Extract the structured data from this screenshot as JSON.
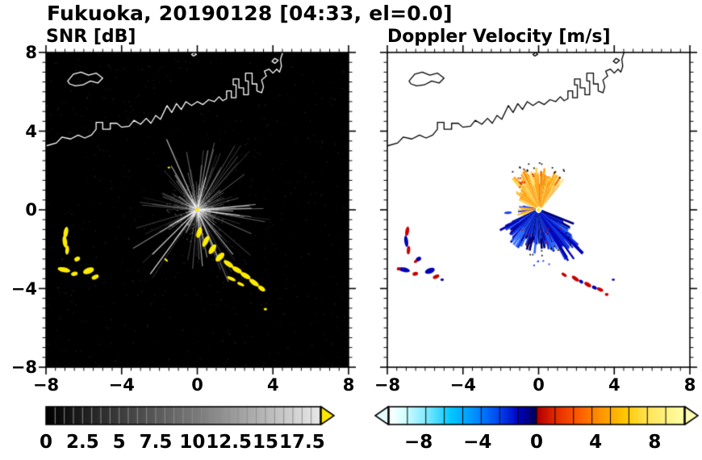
{
  "title": "Fukuoka, 20190128 [04:33, el=0.0]",
  "chart_data": [
    {
      "type": "heatmap",
      "panel": "snr",
      "title": "SNR [dB]",
      "xlabel": "",
      "ylabel": "",
      "xlim": [
        -8,
        8
      ],
      "ylim": [
        -8,
        8
      ],
      "xticks": [
        -8,
        -4,
        0,
        4,
        8
      ],
      "yticks": [
        8,
        4,
        0,
        -4,
        -8
      ],
      "xtick_labels": [
        "−8",
        "−4",
        "0",
        "4",
        "8"
      ],
      "ytick_labels": [
        "8",
        "4",
        "0",
        "−4",
        "−8"
      ],
      "minor_tick_step": 0.5,
      "background": "#000000",
      "coast_color": "#ffffff",
      "target_color": "#ffec00",
      "rays": {
        "seed": 7,
        "count": 175,
        "bright": 22,
        "noise": 650
      },
      "colorbar": {
        "range": [
          0,
          18.75
        ],
        "tick_values": [
          0,
          2.5,
          5,
          7.5,
          10,
          12.5,
          15,
          17.5
        ],
        "tick_labels": [
          "0",
          "2.5",
          "5",
          "7.5",
          "10",
          "12.5",
          "15",
          "17.5"
        ],
        "colormap": "grayscale",
        "stops": [
          [
            0,
            "#000000"
          ],
          [
            0.55,
            "#7a7a7a"
          ],
          [
            0.93,
            "#d8d8d8"
          ],
          [
            1,
            "#e8e8e8"
          ]
        ],
        "segments": 30,
        "separator_color": "#8c8c8c",
        "over_arrow_color": "#ffe800"
      },
      "blobs": [
        {
          "x": -6.95,
          "y": -1.15,
          "rx": 0.12,
          "ry": 0.3,
          "rot": -10
        },
        {
          "x": -7.0,
          "y": -1.62,
          "rx": 0.12,
          "ry": 0.32,
          "rot": 8
        },
        {
          "x": -6.88,
          "y": -2.05,
          "rx": 0.1,
          "ry": 0.24,
          "rot": -5
        },
        {
          "x": -6.35,
          "y": -2.5,
          "rx": 0.16,
          "ry": 0.12,
          "rot": 30
        },
        {
          "x": -7.05,
          "y": -3.05,
          "rx": 0.34,
          "ry": 0.13,
          "rot": -12
        },
        {
          "x": -6.5,
          "y": -3.25,
          "rx": 0.18,
          "ry": 0.11,
          "rot": 15
        },
        {
          "x": -5.75,
          "y": -3.1,
          "rx": 0.3,
          "ry": 0.16,
          "rot": 20
        },
        {
          "x": -5.4,
          "y": -3.42,
          "rx": 0.2,
          "ry": 0.11,
          "rot": 25
        },
        {
          "x": 0.1,
          "y": -1.15,
          "rx": 0.13,
          "ry": 0.3,
          "rot": -18
        },
        {
          "x": 0.45,
          "y": -1.6,
          "rx": 0.13,
          "ry": 0.32,
          "rot": -28
        },
        {
          "x": 0.8,
          "y": -2.0,
          "rx": 0.14,
          "ry": 0.3,
          "rot": -35
        },
        {
          "x": 1.2,
          "y": -2.4,
          "rx": 0.15,
          "ry": 0.3,
          "rot": -45
        },
        {
          "x": 1.65,
          "y": -2.75,
          "rx": 0.3,
          "ry": 0.13,
          "rot": -35
        },
        {
          "x": 2.1,
          "y": -3.05,
          "rx": 0.3,
          "ry": 0.13,
          "rot": -30
        },
        {
          "x": 2.55,
          "y": -3.35,
          "rx": 0.3,
          "ry": 0.13,
          "rot": -30
        },
        {
          "x": 3.0,
          "y": -3.7,
          "rx": 0.3,
          "ry": 0.13,
          "rot": -35
        },
        {
          "x": 3.4,
          "y": -4.0,
          "rx": 0.22,
          "ry": 0.12,
          "rot": -35
        },
        {
          "x": 1.8,
          "y": -3.5,
          "rx": 0.25,
          "ry": 0.09,
          "rot": -25
        },
        {
          "x": 2.3,
          "y": -3.78,
          "rx": 0.2,
          "ry": 0.08,
          "rot": -25
        },
        {
          "x": -1.65,
          "y": -2.55,
          "rx": 0.12,
          "ry": 0.05,
          "rot": -40
        },
        {
          "x": 3.6,
          "y": -5.05,
          "rx": 0.09,
          "ry": 0.07,
          "rot": 0
        },
        {
          "x": -1.5,
          "y": 2.15,
          "rx": 0.07,
          "ry": 0.05,
          "rot": 0
        }
      ]
    },
    {
      "type": "heatmap",
      "panel": "doppler_velocity",
      "title": "Doppler Velocity [m/s]",
      "xlabel": "",
      "ylabel": "",
      "xlim": [
        -8,
        8
      ],
      "ylim": [
        -8,
        8
      ],
      "xticks": [
        -8,
        -4,
        0,
        4,
        8
      ],
      "yticks": [
        8,
        4,
        0,
        -4,
        -8
      ],
      "xtick_labels": [
        "−8",
        "−4",
        "0",
        "4",
        "8"
      ],
      "ytick_labels": [
        "8",
        "4",
        "0",
        "−4",
        "−8"
      ],
      "minor_tick_step": 0.5,
      "background": "#ffffff",
      "coast_color": "#000000",
      "colorbar": {
        "range": [
          -10,
          10
        ],
        "tick_values": [
          -8,
          -4,
          0,
          4,
          8
        ],
        "tick_labels": [
          "−8",
          "−4",
          "0",
          "4",
          "8"
        ],
        "colormap": "velocity",
        "stops": [
          [
            0,
            "#ffffff"
          ],
          [
            0.05,
            "#d6ffff"
          ],
          [
            0.13,
            "#7ce8ff"
          ],
          [
            0.21,
            "#00c8ff"
          ],
          [
            0.29,
            "#0090ff"
          ],
          [
            0.37,
            "#0048f0"
          ],
          [
            0.44,
            "#0000c0"
          ],
          [
            0.495,
            "#000058"
          ],
          [
            0.505,
            "#b40000"
          ],
          [
            0.56,
            "#e02800"
          ],
          [
            0.64,
            "#ff5a00"
          ],
          [
            0.72,
            "#ff9600"
          ],
          [
            0.8,
            "#ffc800"
          ],
          [
            0.88,
            "#ffe55a"
          ],
          [
            1,
            "#ffffaa"
          ]
        ],
        "segments": 16,
        "separator_color": "#000000",
        "under_arrow_color": "#e6ffff",
        "over_arrow_color": "#ffffb4"
      },
      "fans": [
        {
          "a0": 50,
          "a1": 130,
          "n": 95,
          "rmin": 0.5,
          "rmax": 2.25,
          "w": 2.7,
          "colors": [
            "#ffd24d",
            "#ffa81e",
            "#ffe896",
            "#f07800"
          ]
        },
        {
          "a0": 130,
          "a1": 152,
          "n": 20,
          "rmin": 0.4,
          "rmax": 1.55,
          "w": 2.3,
          "colors": [
            "#ffb830",
            "#ffd96a",
            "#ff9100"
          ]
        },
        {
          "a0": 168,
          "a1": 200,
          "n": 14,
          "rmin": 0.3,
          "rmax": 1.2,
          "w": 2.0,
          "colors": [
            "#ffa81e",
            "#2244ee",
            "#ffd96a"
          ]
        },
        {
          "a0": 205,
          "a1": 338,
          "n": 140,
          "rmin": 0.4,
          "rmax": 2.35,
          "w": 2.7,
          "colors": [
            "#1133dd",
            "#0000b4",
            "#3366ff",
            "#000070",
            "#2b6cff"
          ]
        },
        {
          "a0": 298,
          "a1": 318,
          "n": 18,
          "rmin": 1.2,
          "rmax": 3.3,
          "w": 2.4,
          "colors": [
            "#0000b4",
            "#1133dd"
          ]
        }
      ],
      "specks": [
        {
          "count": 16,
          "a0": 55,
          "a1": 125,
          "r0": 2.0,
          "r1": 2.5,
          "color": "#151515",
          "s": 1.8
        },
        {
          "count": 10,
          "a0": 95,
          "a1": 130,
          "r0": 1.5,
          "r1": 2.1,
          "color": "#cc2200",
          "s": 1.8
        },
        {
          "count": 14,
          "a0": 235,
          "a1": 325,
          "r0": 1.8,
          "r1": 2.55,
          "color": "#101010",
          "s": 1.8
        },
        {
          "count": 8,
          "a0": 210,
          "a1": 335,
          "r0": 0.9,
          "r1": 1.9,
          "color": "#cc0000",
          "s": 1.7
        },
        {
          "count": 5,
          "a0": 255,
          "a1": 285,
          "r0": 2.6,
          "r1": 3.0,
          "color": "#2244ee",
          "s": 2.0
        }
      ],
      "blobs": [
        {
          "x": -6.95,
          "y": -1.1,
          "rx": 0.1,
          "ry": 0.26,
          "rot": -10,
          "c": "#c80000"
        },
        {
          "x": -7.0,
          "y": -1.6,
          "rx": 0.1,
          "ry": 0.3,
          "rot": 8,
          "c": "#0000b4"
        },
        {
          "x": -6.88,
          "y": -2.05,
          "rx": 0.09,
          "ry": 0.22,
          "rot": -5,
          "c": "#c80000"
        },
        {
          "x": -6.35,
          "y": -2.5,
          "rx": 0.15,
          "ry": 0.11,
          "rot": 30,
          "c": "#0000b4"
        },
        {
          "x": -6.5,
          "y": -2.62,
          "rx": 0.1,
          "ry": 0.08,
          "rot": 30,
          "c": "#c80000"
        },
        {
          "x": -7.1,
          "y": -3.05,
          "rx": 0.3,
          "ry": 0.12,
          "rot": -12,
          "c": "#0000b4"
        },
        {
          "x": -7.4,
          "y": -3.0,
          "rx": 0.1,
          "ry": 0.09,
          "rot": 0,
          "c": "#c80000"
        },
        {
          "x": -6.52,
          "y": -3.25,
          "rx": 0.15,
          "ry": 0.1,
          "rot": 15,
          "c": "#c80000"
        },
        {
          "x": -5.75,
          "y": -3.1,
          "rx": 0.27,
          "ry": 0.14,
          "rot": 20,
          "c": "#0000b4"
        },
        {
          "x": -5.42,
          "y": -3.4,
          "rx": 0.18,
          "ry": 0.1,
          "rot": 25,
          "c": "#c80000"
        },
        {
          "x": -5.1,
          "y": -3.55,
          "rx": 0.09,
          "ry": 0.07,
          "rot": 0,
          "c": "#0000b4"
        },
        {
          "x": -1.62,
          "y": -0.15,
          "rx": 0.2,
          "ry": 0.07,
          "rot": 5,
          "c": "#2244ee"
        },
        {
          "x": 1.35,
          "y": -3.3,
          "rx": 0.16,
          "ry": 0.08,
          "rot": -35,
          "c": "#c80000"
        },
        {
          "x": 1.95,
          "y": -3.5,
          "rx": 0.22,
          "ry": 0.1,
          "rot": -35,
          "c": "#c80000"
        },
        {
          "x": 2.25,
          "y": -3.65,
          "rx": 0.12,
          "ry": 0.09,
          "rot": -35,
          "c": "#0000b4"
        },
        {
          "x": 2.6,
          "y": -3.8,
          "rx": 0.2,
          "ry": 0.1,
          "rot": -30,
          "c": "#c80000"
        },
        {
          "x": 2.95,
          "y": -3.95,
          "rx": 0.14,
          "ry": 0.09,
          "rot": -30,
          "c": "#0000b4"
        },
        {
          "x": 3.25,
          "y": -4.05,
          "rx": 0.18,
          "ry": 0.09,
          "rot": -25,
          "c": "#c80000"
        },
        {
          "x": 3.6,
          "y": -4.3,
          "rx": 0.1,
          "ry": 0.08,
          "rot": 0,
          "c": "#c80000"
        },
        {
          "x": 3.95,
          "y": -3.55,
          "rx": 0.08,
          "ry": 0.06,
          "rot": 0,
          "c": "#0000b4"
        }
      ]
    }
  ],
  "map": {
    "coastline": [
      [
        -8.0,
        3.25
      ],
      [
        -7.45,
        3.4
      ],
      [
        -7.15,
        3.7
      ],
      [
        -6.7,
        3.6
      ],
      [
        -6.3,
        3.8
      ],
      [
        -5.95,
        3.65
      ],
      [
        -5.6,
        3.8
      ],
      [
        -5.35,
        4.1
      ],
      [
        -5.35,
        4.45
      ],
      [
        -5.0,
        4.45
      ],
      [
        -5.0,
        4.1
      ],
      [
        -4.6,
        4.1
      ],
      [
        -4.6,
        4.4
      ],
      [
        -4.25,
        4.4
      ],
      [
        -4.0,
        4.2
      ],
      [
        -3.6,
        4.25
      ],
      [
        -3.35,
        4.55
      ],
      [
        -3.0,
        4.35
      ],
      [
        -2.7,
        4.65
      ],
      [
        -2.45,
        4.4
      ],
      [
        -2.2,
        4.8
      ],
      [
        -1.95,
        4.6
      ],
      [
        -1.6,
        5.3
      ],
      [
        -1.35,
        4.95
      ],
      [
        -1.1,
        5.4
      ],
      [
        -0.85,
        5.1
      ],
      [
        -0.6,
        5.5
      ],
      [
        -0.3,
        5.3
      ],
      [
        0.0,
        5.5
      ],
      [
        0.3,
        5.35
      ],
      [
        0.6,
        5.6
      ],
      [
        0.9,
        5.5
      ],
      [
        1.15,
        5.75
      ],
      [
        1.35,
        5.55
      ],
      [
        1.55,
        5.65
      ],
      [
        1.55,
        6.05
      ],
      [
        1.8,
        6.05
      ],
      [
        1.8,
        5.7
      ],
      [
        2.05,
        5.7
      ],
      [
        2.05,
        6.35
      ],
      [
        1.9,
        6.35
      ],
      [
        1.9,
        6.65
      ],
      [
        2.2,
        6.65
      ],
      [
        2.2,
        6.2
      ],
      [
        2.45,
        6.2
      ],
      [
        2.45,
        5.85
      ],
      [
        2.7,
        5.85
      ],
      [
        2.7,
        6.55
      ],
      [
        2.55,
        6.55
      ],
      [
        2.55,
        6.95
      ],
      [
        2.9,
        6.95
      ],
      [
        2.9,
        6.4
      ],
      [
        3.15,
        6.4
      ],
      [
        3.15,
        6.05
      ],
      [
        3.4,
        5.95
      ],
      [
        3.5,
        6.25
      ],
      [
        3.4,
        6.6
      ],
      [
        3.65,
        6.8
      ],
      [
        3.55,
        7.05
      ],
      [
        3.8,
        7.15
      ],
      [
        4.0,
        6.95
      ],
      [
        4.2,
        7.15
      ],
      [
        4.35,
        7.0
      ],
      [
        4.45,
        7.3
      ],
      [
        4.4,
        7.65
      ],
      [
        4.55,
        8.1
      ]
    ],
    "island": [
      [
        -6.85,
        6.55
      ],
      [
        -6.55,
        6.9
      ],
      [
        -6.15,
        7.0
      ],
      [
        -5.75,
        6.85
      ],
      [
        -5.35,
        6.95
      ],
      [
        -5.0,
        6.7
      ],
      [
        -5.25,
        6.45
      ],
      [
        -5.65,
        6.55
      ],
      [
        -6.05,
        6.35
      ],
      [
        -6.45,
        6.3
      ],
      [
        -6.75,
        6.4
      ]
    ],
    "islets": [
      [
        [
          3.95,
          7.55
        ],
        [
          4.1,
          7.7
        ],
        [
          4.28,
          7.6
        ],
        [
          4.1,
          7.45
        ]
      ],
      [
        [
          -0.3,
          7.9
        ],
        [
          -0.15,
          8.0
        ],
        [
          -0.05,
          7.9
        ],
        [
          -0.2,
          7.82
        ]
      ]
    ]
  }
}
